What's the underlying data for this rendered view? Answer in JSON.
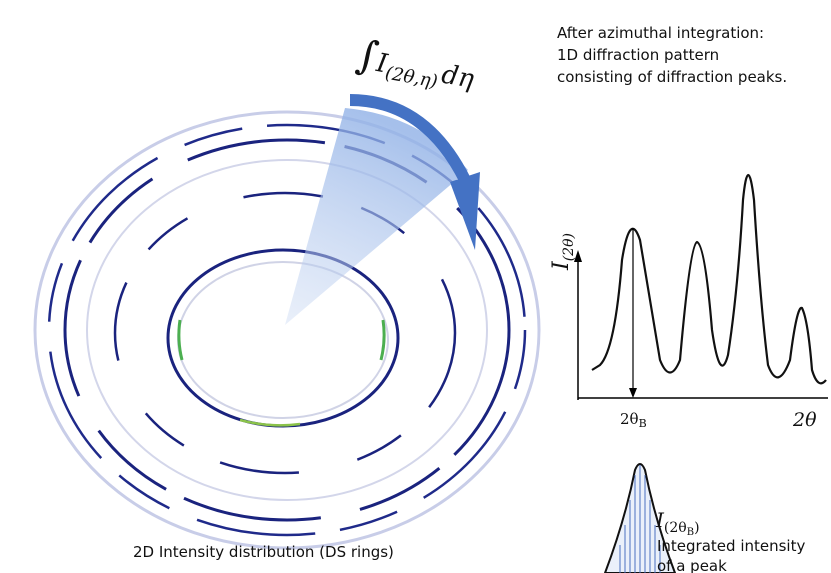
{
  "integral_label": {
    "symbol": "∫",
    "integrand": "I",
    "subscript": "(2θ,η)",
    "differential": "dη"
  },
  "description": {
    "lines": [
      "After azimuthal integration:",
      "1D diffraction pattern",
      "consisting of diffraction peaks."
    ]
  },
  "plot": {
    "y_label": {
      "base": "I",
      "subscript": "(2θ)"
    },
    "x_label": "2θ",
    "bragg_label": {
      "base": "2θ",
      "subscript": "B"
    }
  },
  "peak": {
    "label": {
      "base": "I",
      "sub_open": "(2θ",
      "sub_inner": "B",
      "sub_close": ")"
    },
    "lines": [
      "Integrated intensity",
      "of a peak"
    ]
  },
  "caption": "2D Intensity distribution (DS rings)"
}
